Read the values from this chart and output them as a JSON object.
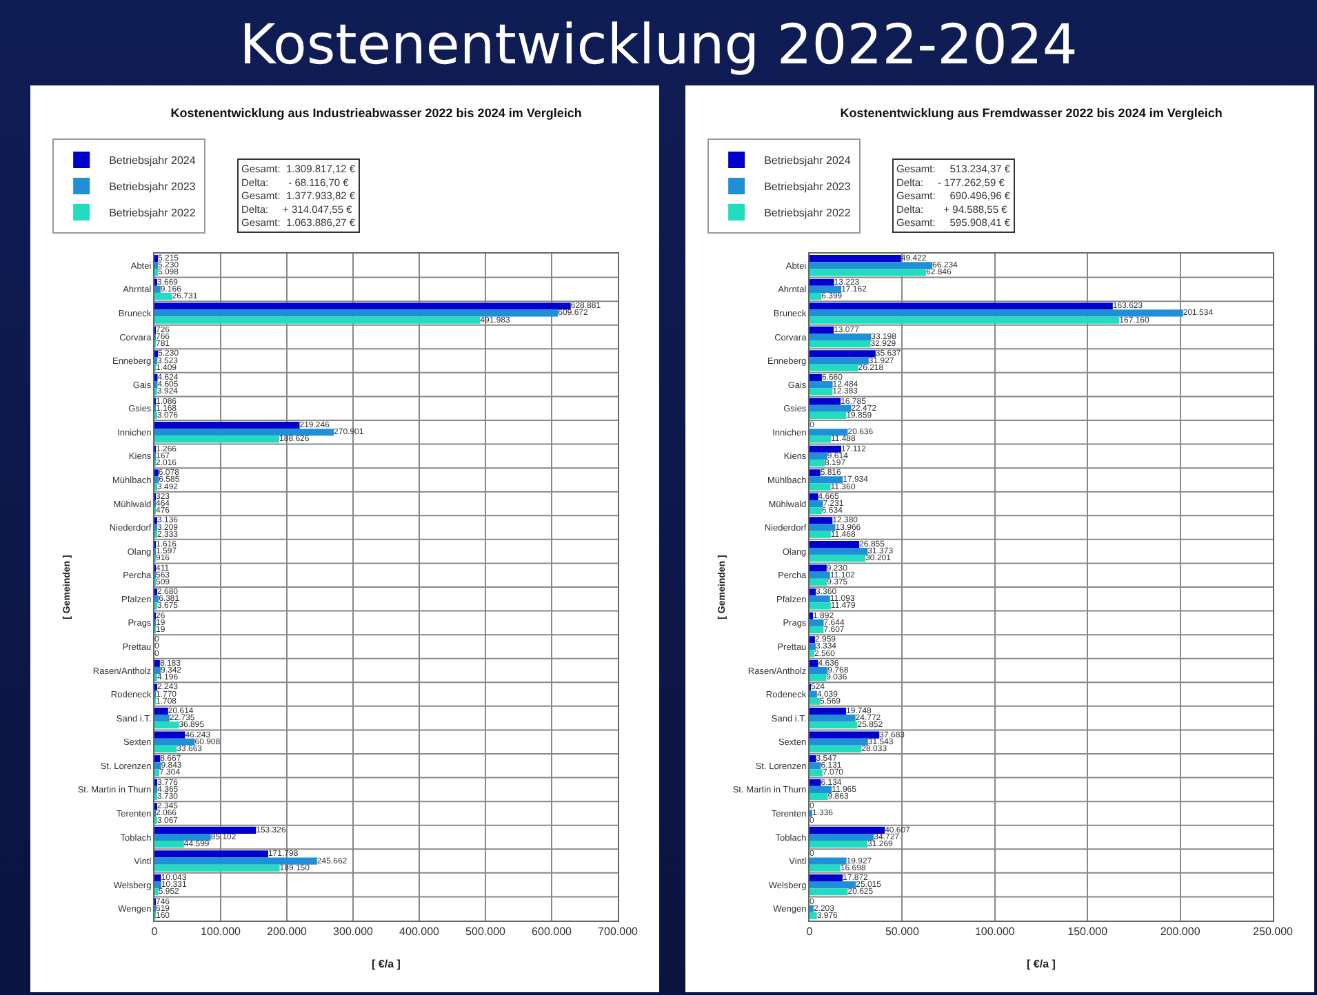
{
  "chart_data": [
    {
      "type": "other",
      "title": "Kostenentwicklung 2022-2024"
    },
    {
      "type": "bar",
      "orientation": "horizontal",
      "title": "Kostenentwicklung aus Industrieabwasser 2022 bis 2024 im Vergleich",
      "xlabel": "[ €/a ]",
      "ylabel": "[ Gemeinden ]",
      "categories": [
        "Abtei",
        "Ahrntal",
        "Bruneck",
        "Corvara",
        "Enneberg",
        "Gais",
        "Gsies",
        "Innichen",
        "Kiens",
        "Mühlbach",
        "Mühlwald",
        "Niederdorf",
        "Olang",
        "Percha",
        "Pfalzen",
        "Prags",
        "Prettau",
        "Rasen/Antholz",
        "Rodeneck",
        "Sand i.T.",
        "Sexten",
        "St. Lorenzen",
        "St. Martin in Thurn",
        "Terenten",
        "Toblach",
        "Vintl",
        "Welsberg",
        "Wengen"
      ],
      "series": [
        {
          "name": "Betriebsjahr 2024",
          "color": "#0000cc",
          "values": [
            5215,
            3669,
            628881,
            726,
            5230,
            4624,
            1086,
            219246,
            1266,
            6078,
            323,
            3136,
            1616,
            411,
            2680,
            26,
            0,
            8183,
            2243,
            20614,
            46243,
            8667,
            3776,
            2345,
            153326,
            171798,
            10043,
            746
          ],
          "value_labels": [
            "5.215",
            "3.669",
            "628.881",
            "726",
            "5.230",
            "4.624",
            "1.086",
            "219.246",
            "1.266",
            "6.078",
            "323",
            "3.136",
            "1.616",
            "411",
            "2.680",
            "26",
            "0",
            "8.183",
            "2.243",
            "20.614",
            "46.243",
            "8.667",
            "3.776",
            "2.345",
            "153.326",
            "171.798",
            "10.043",
            "746"
          ]
        },
        {
          "name": "Betriebsjahr 2023",
          "color": "#1f8fd8",
          "values": [
            5230,
            9166,
            609672,
            766,
            3523,
            4605,
            1168,
            270901,
            167,
            6585,
            464,
            3209,
            1597,
            563,
            6381,
            19,
            0,
            9342,
            1770,
            22735,
            60908,
            9843,
            4365,
            2066,
            85102,
            245662,
            10331,
            619
          ],
          "value_labels": [
            "5.230",
            "9.166",
            "609.672",
            "766",
            "3.523",
            "4.605",
            "1.168",
            "270.901",
            "167",
            "6.585",
            "464",
            "3.209",
            "1.597",
            "563",
            "6.381",
            "19",
            "0",
            "9.342",
            "1.770",
            "22.735",
            "60.908",
            "9.843",
            "4.365",
            "2.066",
            "85.102",
            "245.662",
            "10.331",
            "619"
          ]
        },
        {
          "name": "Betriebsjahr 2022",
          "color": "#22dcc0",
          "values": [
            5098,
            26731,
            491983,
            781,
            1409,
            3924,
            3076,
            188626,
            2016,
            3492,
            476,
            2333,
            916,
            509,
            3675,
            19,
            0,
            4196,
            1708,
            36895,
            33663,
            7304,
            3730,
            3067,
            44599,
            189150,
            5952,
            160
          ],
          "value_labels": [
            "5.098",
            "26.731",
            "491.983",
            "781",
            "1.409",
            "3.924",
            "3.076",
            "188.626",
            "2.016",
            "3.492",
            "476",
            "2.333",
            "916",
            "509",
            "3.675",
            "19",
            "0",
            "4.196",
            "1.708",
            "36.895",
            "33.663",
            "7.304",
            "3.730",
            "3.067",
            "44.599",
            "189.150",
            "5.952",
            "160"
          ]
        }
      ],
      "xlim": [
        0,
        700000
      ],
      "xticks": [
        0,
        {
          "value": 100000,
          "label": "100.000"
        },
        {
          "value": 200000,
          "label": "200.000"
        },
        {
          "value": 300000,
          "label": "300.000"
        },
        {
          "value": 400000,
          "label": "400.000"
        },
        {
          "value": 500000,
          "label": "500.000"
        },
        {
          "value": 600000,
          "label": "600.000"
        },
        {
          "value": 700000,
          "label": "700.000"
        }
      ],
      "grid": true,
      "legend": "top left",
      "annotations": [
        "Gesamt:  1.309.817,12 €",
        "Delta:       - 68.116,70 €",
        "Gesamt:  1.377.933,82 €",
        "Delta:     + 314.047,55 €",
        "Gesamt:  1.063.886,27 €"
      ]
    },
    {
      "type": "bar",
      "orientation": "horizontal",
      "title": "Kostenentwicklung aus Fremdwasser 2022 bis 2024 im Vergleich",
      "xlabel": "[ €/a ]",
      "ylabel": "[ Gemeinden ]",
      "categories": [
        "Abtei",
        "Ahrntal",
        "Bruneck",
        "Corvara",
        "Enneberg",
        "Gais",
        "Gsies",
        "Innichen",
        "Kiens",
        "Mühlbach",
        "Mühlwald",
        "Niederdorf",
        "Olang",
        "Percha",
        "Pfalzen",
        "Prags",
        "Prettau",
        "Rasen/Antholz",
        "Rodeneck",
        "Sand i.T.",
        "Sexten",
        "St. Lorenzen",
        "St. Martin in Thurn",
        "Terenten",
        "Toblach",
        "Vintl",
        "Welsberg",
        "Wengen"
      ],
      "series": [
        {
          "name": "Betriebsjahr 2024",
          "color": "#0000cc",
          "values": [
            49422,
            13223,
            163623,
            13077,
            35637,
            6660,
            16785,
            0,
            17112,
            5816,
            4665,
            12380,
            26855,
            9230,
            3360,
            1892,
            2959,
            4636,
            524,
            19748,
            37683,
            3547,
            6134,
            0,
            40607,
            0,
            17872,
            0
          ],
          "value_labels": [
            "49.422",
            "13.223",
            "163.623",
            "13.077",
            "35.637",
            "6.660",
            "16.785",
            "0",
            "17.112",
            "5.816",
            "4.665",
            "12.380",
            "26.855",
            "9.230",
            "3.360",
            "1.892",
            "2.959",
            "4.636",
            "524",
            "19.748",
            "37.683",
            "3.547",
            "6.134",
            "0",
            "40.607",
            "0",
            "17.872",
            "0"
          ]
        },
        {
          "name": "Betriebsjahr 2023",
          "color": "#1f8fd8",
          "values": [
            66234,
            17162,
            201534,
            33198,
            31927,
            12484,
            22472,
            20636,
            9614,
            17934,
            7231,
            13966,
            31373,
            11102,
            11093,
            7644,
            3334,
            9768,
            4039,
            24772,
            31543,
            6131,
            11965,
            1336,
            34727,
            19927,
            25015,
            2203
          ],
          "value_labels": [
            "66.234",
            "17.162",
            "201.534",
            "33.198",
            "31.927",
            "12.484",
            "22.472",
            "20.636",
            "9.614",
            "17.934",
            "7.231",
            "13.966",
            "31.373",
            "11.102",
            "11.093",
            "7.644",
            "3.334",
            "9.768",
            "4.039",
            "24.772",
            "31.543",
            "6.131",
            "11.965",
            "1.336",
            "34.727",
            "19.927",
            "25.015",
            "2.203"
          ]
        },
        {
          "name": "Betriebsjahr 2022",
          "color": "#22dcc0",
          "values": [
            62846,
            6399,
            167160,
            32929,
            26218,
            12383,
            19859,
            11488,
            8197,
            11360,
            6634,
            11468,
            30201,
            9375,
            11479,
            7607,
            2560,
            9036,
            5569,
            25852,
            28033,
            7070,
            9863,
            0,
            31269,
            16698,
            20625,
            3976
          ],
          "value_labels": [
            "62.846",
            "6.399",
            "167.160",
            "32.929",
            "26.218",
            "12.383",
            "19.859",
            "11.488",
            "8.197",
            "11.360",
            "6.634",
            "11.468",
            "30.201",
            "9.375",
            "11.479",
            "7.607",
            "2.560",
            "9.036",
            "5.569",
            "25.852",
            "28.033",
            "7.070",
            "9.863",
            "0",
            "31.269",
            "16.698",
            "20.625",
            "3.976"
          ]
        }
      ],
      "xlim": [
        0,
        250000
      ],
      "xticks": [
        0,
        {
          "value": 50000,
          "label": "50.000"
        },
        {
          "value": 100000,
          "label": "100.000"
        },
        {
          "value": 150000,
          "label": "150.000"
        },
        {
          "value": 200000,
          "label": "200.000"
        },
        {
          "value": 250000,
          "label": "250.000"
        }
      ],
      "grid": true,
      "legend": "top left",
      "annotations": [
        "Gesamt:     513.234,37 €",
        "Delta:     - 177.262,59 €",
        "Gesamt:     690.496,96 €",
        "Delta:       + 94.588,55 €",
        "Gesamt:     595.908,41 €"
      ]
    }
  ]
}
